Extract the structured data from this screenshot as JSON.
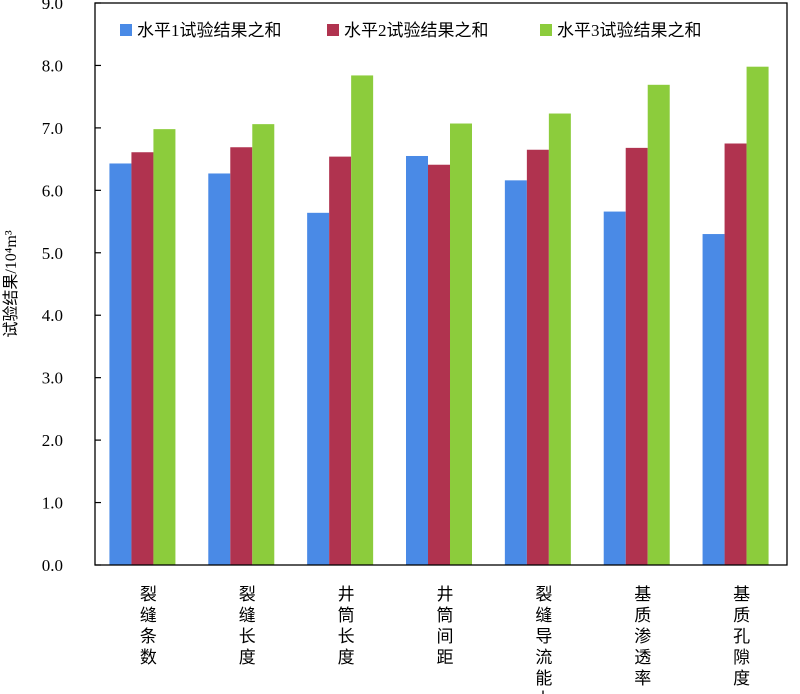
{
  "chart_data": {
    "type": "bar",
    "ylabel": "试验结果/10⁴m³",
    "ylim": [
      0,
      9.0
    ],
    "yticks": [
      "0.0",
      "1.0",
      "2.0",
      "3.0",
      "4.0",
      "5.0",
      "6.0",
      "7.0",
      "8.0",
      "9.0"
    ],
    "grid": false,
    "legend_position": "top",
    "categories": [
      "裂缝条数",
      "裂缝长度",
      "井筒长度",
      "井筒间距",
      "裂缝导流能力",
      "基质渗透率",
      "基质孔隙度"
    ],
    "series": [
      {
        "name": "水平1试验结果之和",
        "color": "#4a8ae6",
        "values": [
          6.43,
          6.27,
          5.64,
          6.55,
          6.16,
          5.66,
          5.3
        ]
      },
      {
        "name": "水平2试验结果之和",
        "color": "#b0334f",
        "values": [
          6.61,
          6.69,
          6.54,
          6.41,
          6.65,
          6.68,
          6.75
        ]
      },
      {
        "name": "水平3试验结果之和",
        "color": "#8ccc3c",
        "values": [
          6.98,
          7.06,
          7.84,
          7.07,
          7.23,
          7.69,
          7.98
        ]
      }
    ]
  }
}
